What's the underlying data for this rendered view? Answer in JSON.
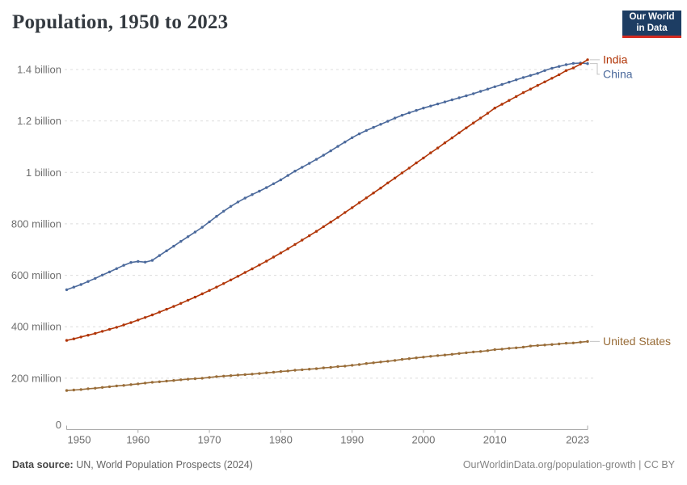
{
  "header": {
    "title": "Population, 1950 to 2023"
  },
  "logo": {
    "line1": "Our World",
    "line2": "in Data",
    "bg_color": "#1d3d63",
    "stripe_color": "#d42b21"
  },
  "footer": {
    "source_label": "Data source:",
    "source_text": " UN, World Population Prospects (2024)",
    "credit": "OurWorldinData.org/population-growth | CC BY"
  },
  "chart_data": {
    "type": "line",
    "title": "Population, 1950 to 2023",
    "xlabel": "",
    "ylabel": "",
    "unit": "people (millions)",
    "grid": "dashed-horizontal",
    "legend_position": "right-end-labels",
    "xlim": [
      1950,
      2023
    ],
    "ylim": [
      0,
      1400
    ],
    "x_ticks": [
      1950,
      1960,
      1970,
      1980,
      1990,
      2000,
      2010,
      2023
    ],
    "y_ticks": [
      {
        "value": 0,
        "label": "0"
      },
      {
        "value": 200,
        "label": "200 million"
      },
      {
        "value": 400,
        "label": "400 million"
      },
      {
        "value": 600,
        "label": "600 million"
      },
      {
        "value": 800,
        "label": "800 million"
      },
      {
        "value": 1000,
        "label": "1 billion"
      },
      {
        "value": 1200,
        "label": "1.2 billion"
      },
      {
        "value": 1400,
        "label": "1.4 billion"
      }
    ],
    "x": [
      1950,
      1951,
      1952,
      1953,
      1954,
      1955,
      1956,
      1957,
      1958,
      1959,
      1960,
      1961,
      1962,
      1963,
      1964,
      1965,
      1966,
      1967,
      1968,
      1969,
      1970,
      1971,
      1972,
      1973,
      1974,
      1975,
      1976,
      1977,
      1978,
      1979,
      1980,
      1981,
      1982,
      1983,
      1984,
      1985,
      1986,
      1987,
      1988,
      1989,
      1990,
      1991,
      1992,
      1993,
      1994,
      1995,
      1996,
      1997,
      1998,
      1999,
      2000,
      2001,
      2002,
      2003,
      2004,
      2005,
      2006,
      2007,
      2008,
      2009,
      2010,
      2011,
      2012,
      2013,
      2014,
      2015,
      2016,
      2017,
      2018,
      2019,
      2020,
      2021,
      2022,
      2023
    ],
    "series": [
      {
        "name": "India",
        "color": "#b13507",
        "values": [
          347,
          353,
          360,
          367,
          374,
          382,
          390,
          398,
          407,
          416,
          426,
          436,
          446,
          457,
          468,
          479,
          491,
          503,
          515,
          528,
          541,
          554,
          568,
          582,
          596,
          611,
          625,
          640,
          655,
          671,
          687,
          703,
          720,
          737,
          754,
          771,
          789,
          807,
          825,
          844,
          863,
          882,
          901,
          920,
          939,
          959,
          978,
          998,
          1017,
          1037,
          1056,
          1076,
          1095,
          1115,
          1134,
          1154,
          1173,
          1192,
          1211,
          1230,
          1250,
          1265,
          1280,
          1295,
          1310,
          1324,
          1338,
          1352,
          1366,
          1380,
          1396,
          1406,
          1421,
          1438
        ]
      },
      {
        "name": "China",
        "color": "#4c6a9c",
        "values": [
          544,
          554,
          564,
          576,
          588,
          601,
          613,
          626,
          639,
          650,
          654,
          651,
          658,
          677,
          695,
          713,
          732,
          750,
          768,
          787,
          808,
          829,
          849,
          868,
          885,
          900,
          914,
          927,
          941,
          956,
          971,
          988,
          1005,
          1020,
          1035,
          1051,
          1067,
          1084,
          1101,
          1118,
          1135,
          1150,
          1163,
          1175,
          1187,
          1199,
          1211,
          1222,
          1232,
          1241,
          1250,
          1258,
          1266,
          1274,
          1282,
          1290,
          1298,
          1306,
          1315,
          1324,
          1333,
          1342,
          1351,
          1360,
          1369,
          1377,
          1385,
          1396,
          1405,
          1412,
          1419,
          1424,
          1425,
          1423
        ]
      },
      {
        "name": "United States",
        "color": "#996d39",
        "values": [
          152,
          154,
          156,
          159,
          161,
          164,
          167,
          170,
          172,
          175,
          178,
          181,
          184,
          186,
          189,
          191,
          194,
          196,
          198,
          200,
          203,
          206,
          208,
          210,
          212,
          214,
          216,
          218,
          221,
          223,
          226,
          228,
          231,
          233,
          235,
          237,
          240,
          242,
          245,
          247,
          250,
          253,
          257,
          260,
          263,
          266,
          269,
          273,
          276,
          279,
          282,
          285,
          288,
          290,
          293,
          296,
          299,
          302,
          304,
          307,
          311,
          313,
          316,
          318,
          321,
          325,
          327,
          329,
          331,
          333,
          336,
          337,
          340,
          343
        ]
      }
    ]
  }
}
